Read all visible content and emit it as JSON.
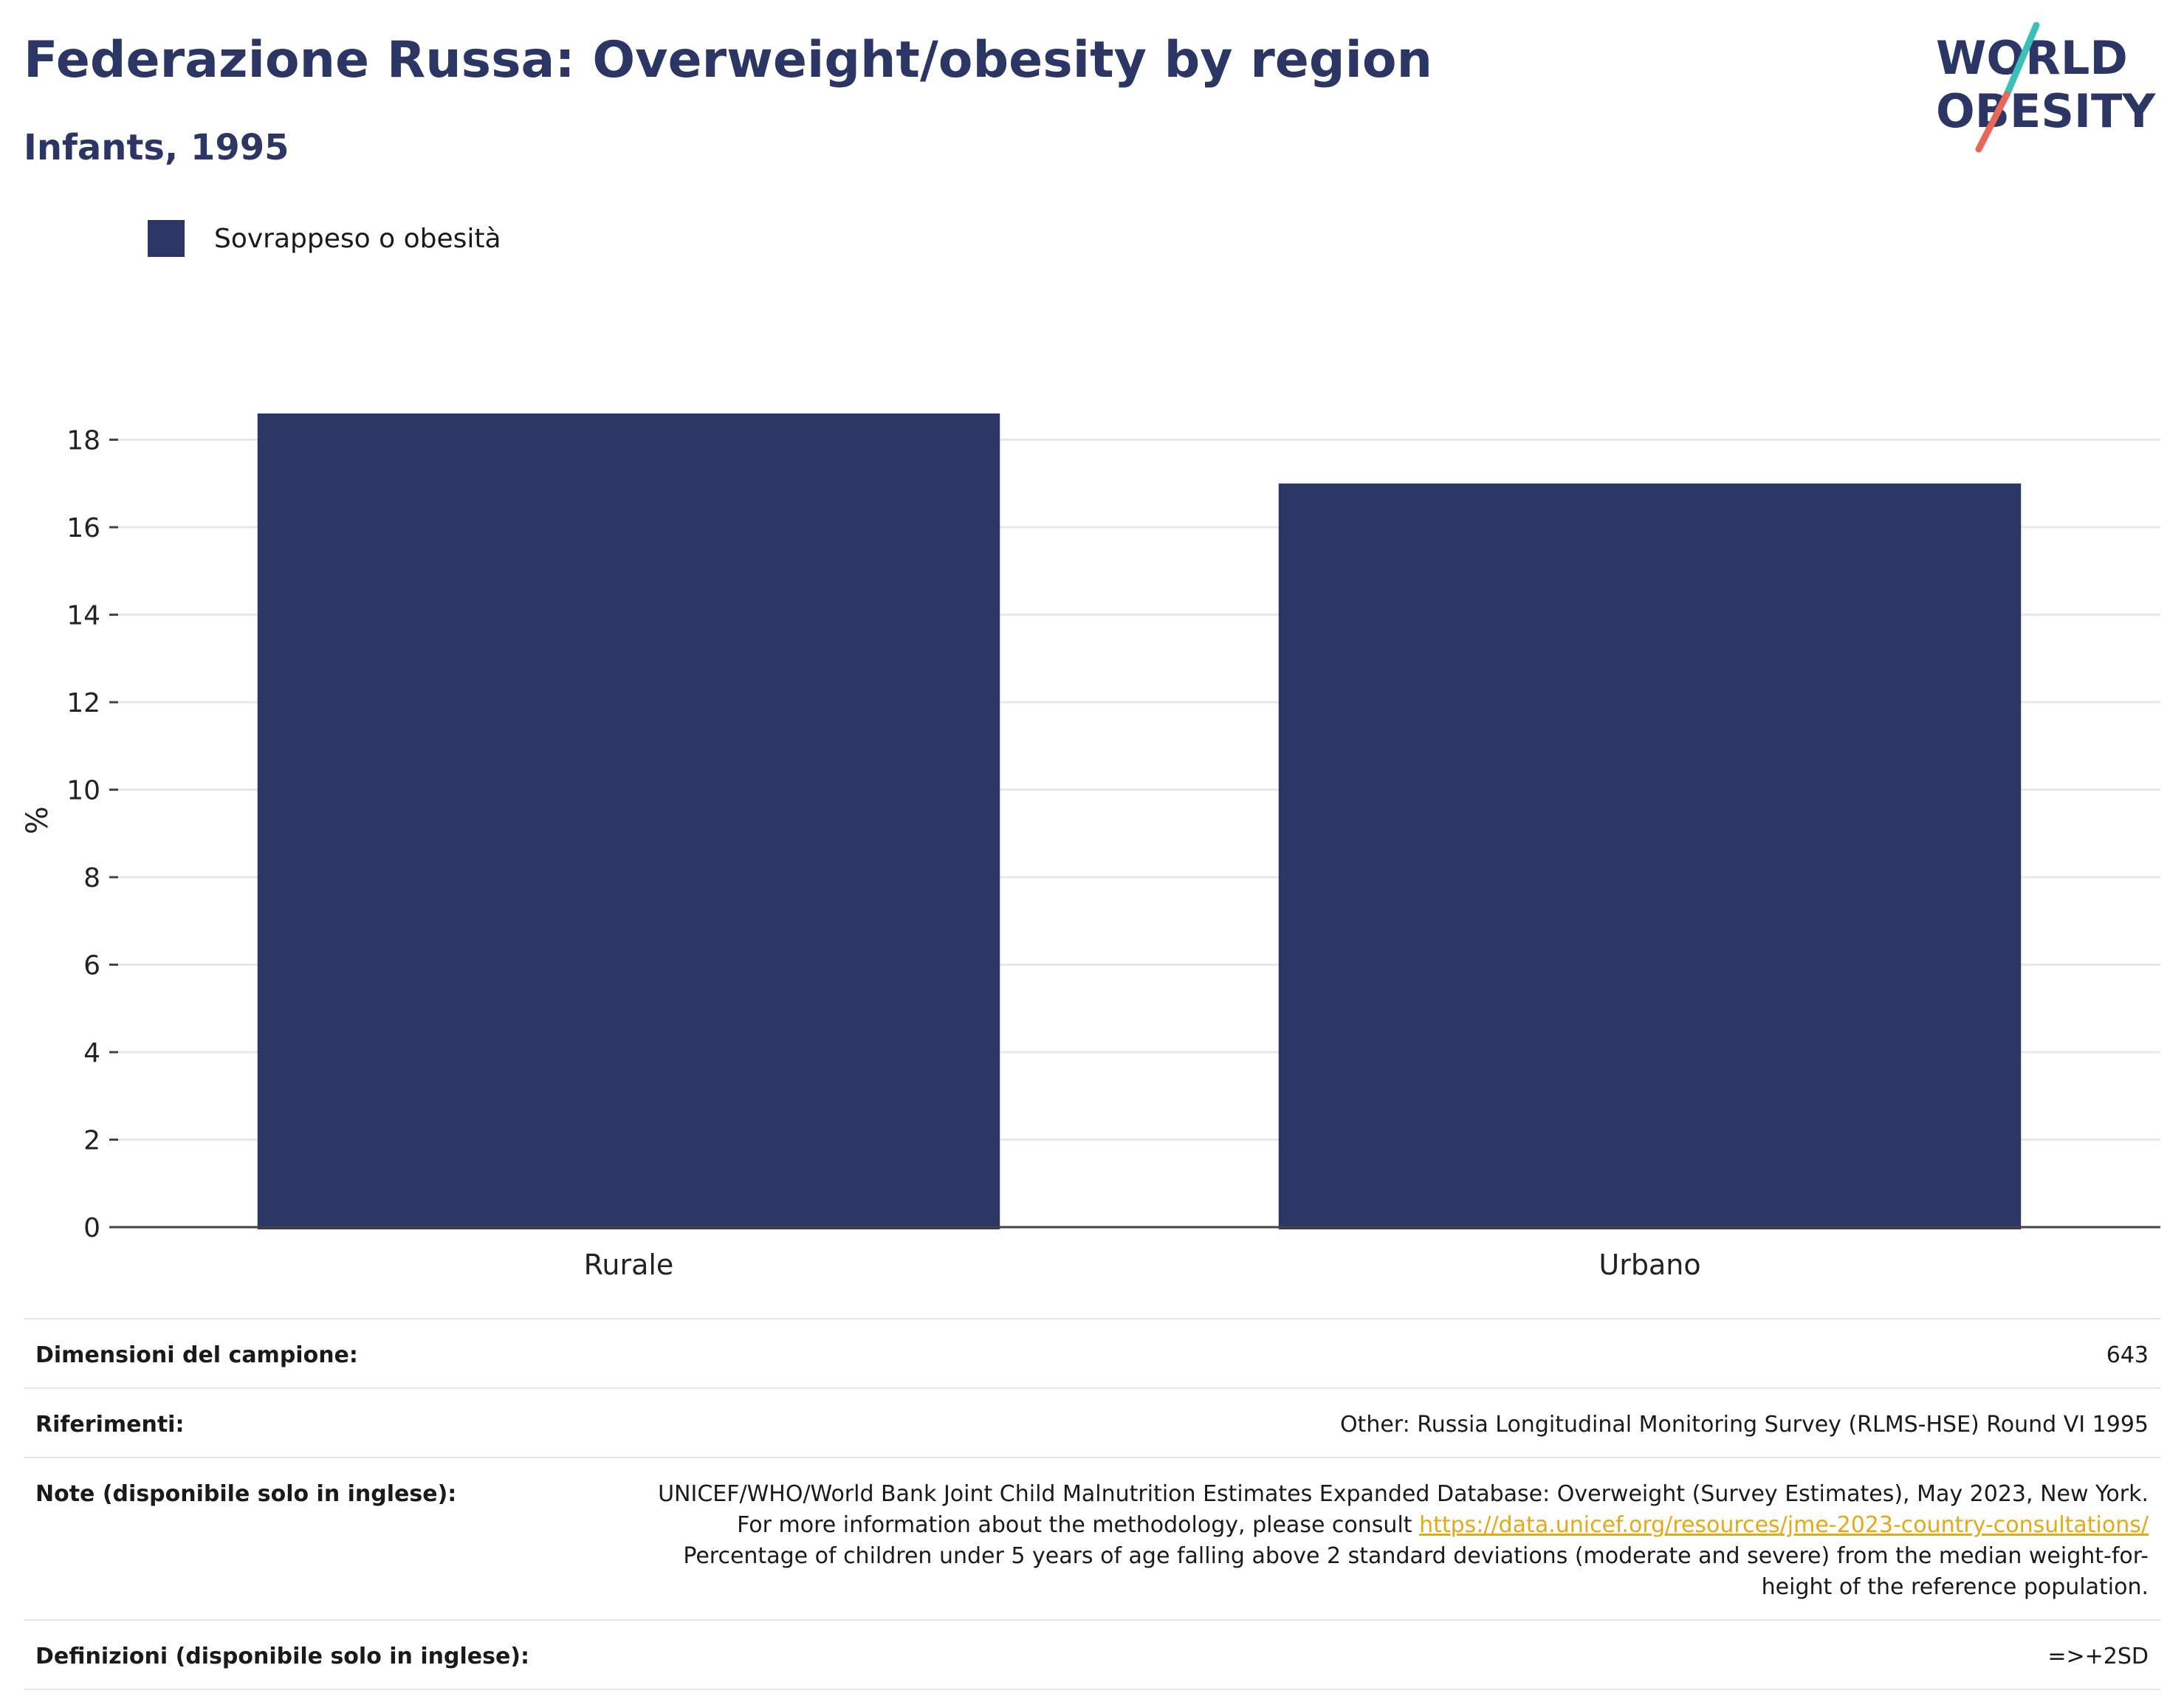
{
  "header": {
    "title": "Federazione Russa: Overweight/obesity by region",
    "subtitle": "Infants, 1995"
  },
  "logo": {
    "line1": "WORLD",
    "line2": "OBESITY",
    "colors": {
      "text": "#2b3664",
      "slash_teal": "#3bbfb8",
      "slash_red": "#e8675b"
    }
  },
  "legend": {
    "label": "Sovrappeso o obesità",
    "color": "#2b3664"
  },
  "chart_data": {
    "type": "bar",
    "categories": [
      "Rurale",
      "Urbano"
    ],
    "series": [
      {
        "name": "Sovrappeso o obesità",
        "values": [
          18.6,
          17.0
        ],
        "color": "#2b3664"
      }
    ],
    "ylabel": "%",
    "xlabel": "",
    "ylim": [
      0,
      18.6
    ],
    "yticks": [
      0,
      2,
      4,
      6,
      8,
      10,
      12,
      14,
      16,
      18
    ],
    "grid": true,
    "legend_position": "top-left"
  },
  "info": {
    "sample_label": "Dimensioni del campione:",
    "sample_value": "643",
    "refs_label": "Riferimenti:",
    "refs_value": "Other: Russia Longitudinal Monitoring Survey (RLMS-HSE) Round VI 1995",
    "notes_label": "Note (disponibile solo in inglese):",
    "notes_text1": "UNICEF/WHO/World Bank Joint Child Malnutrition Estimates Expanded Database: Overweight (Survey Estimates), May 2023, New York. For more information about the methodology, please consult",
    "notes_link": "https://data.unicef.org/resources/jme-2023-country-consultations/",
    "notes_text2": "Percentage of children under 5 years of age falling above 2 standard deviations (moderate and severe) from the median weight-for-height of the reference population.",
    "defs_label": "Definizioni (disponibile solo in inglese):",
    "defs_value": "=>+2SD"
  }
}
